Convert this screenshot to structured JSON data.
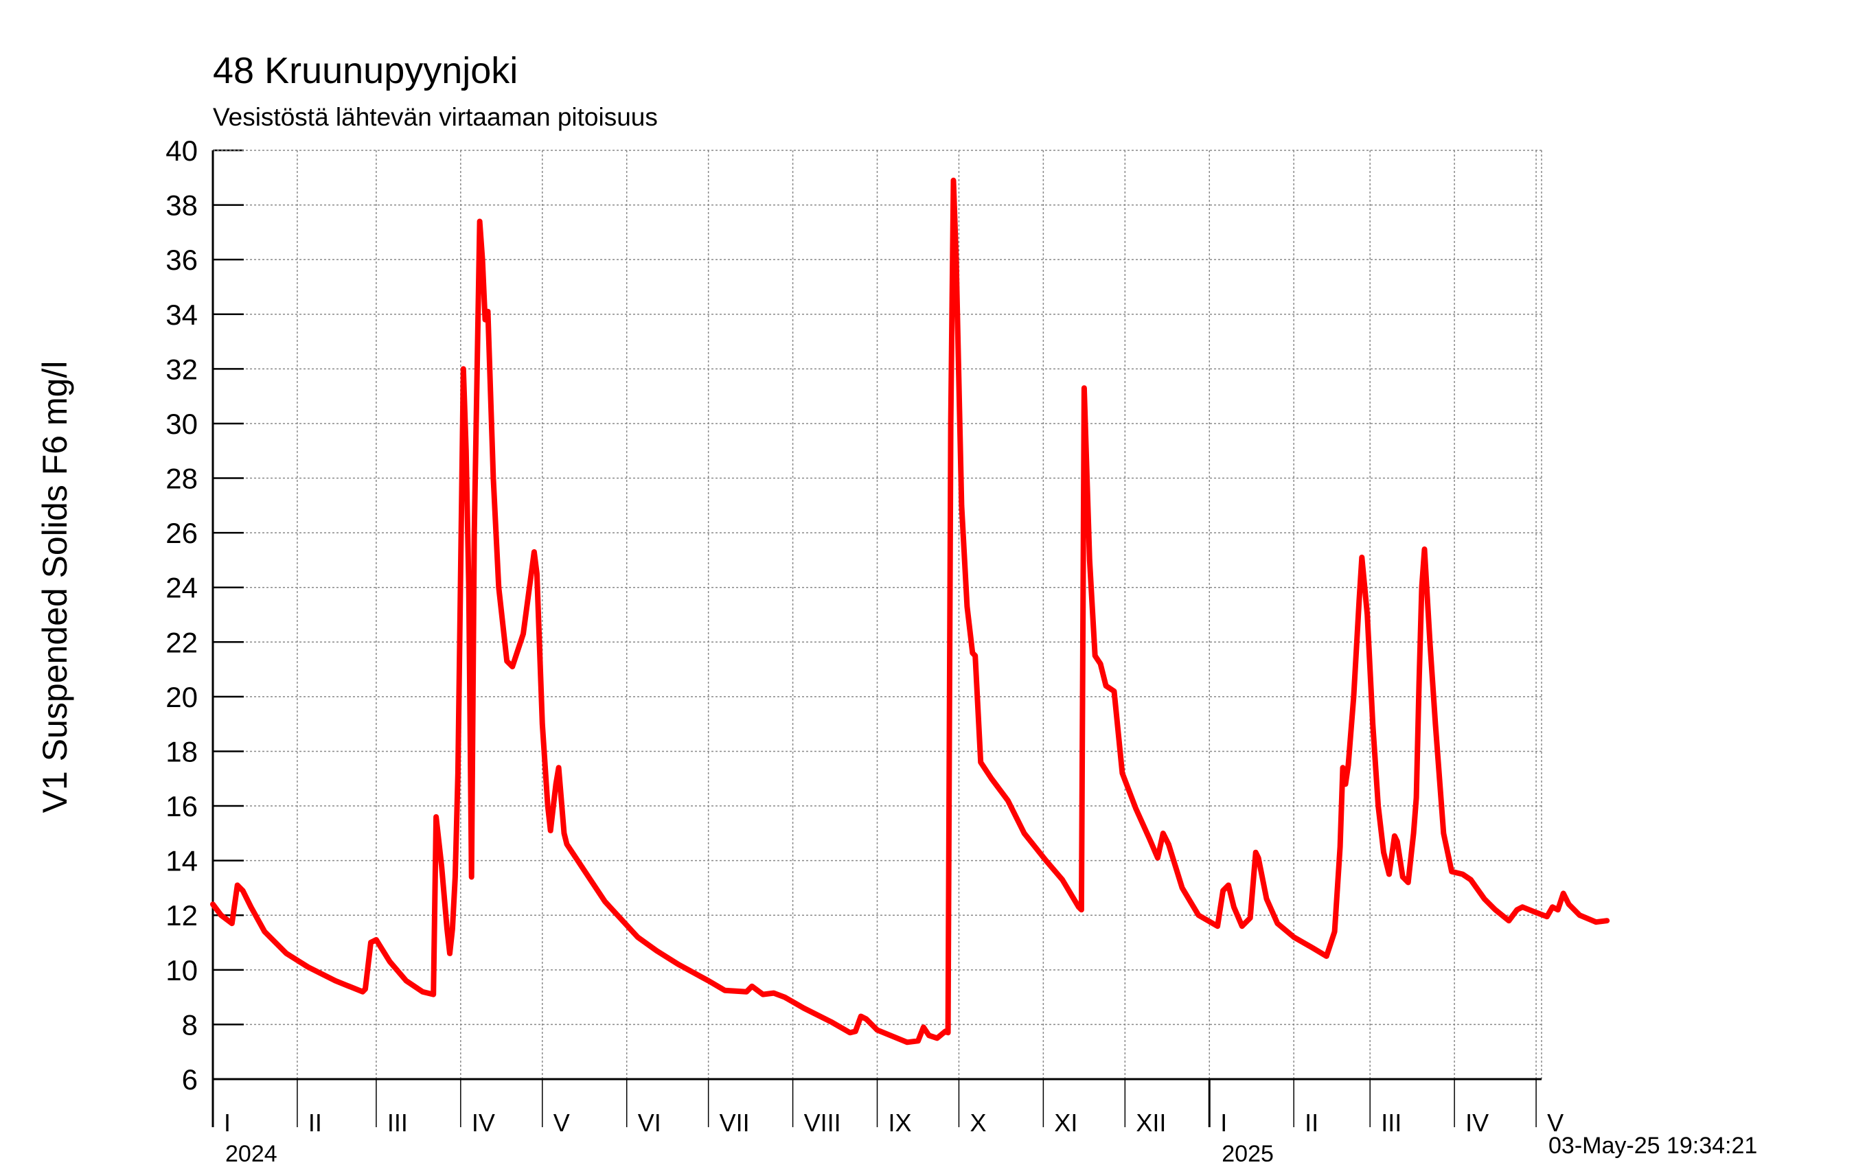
{
  "chart_data": {
    "type": "line",
    "title": "48 Kruunupyynjoki",
    "subtitle": "Vesistöstä lähtevän virtaaman pitoisuus",
    "ylabel": "V1 Suspended Solids F6 mg/l",
    "xlabel": "",
    "ylim": [
      6,
      40
    ],
    "yticks": [
      6,
      8,
      10,
      12,
      14,
      16,
      18,
      20,
      22,
      24,
      26,
      28,
      30,
      32,
      34,
      36,
      38,
      40
    ],
    "xlim": [
      "2024-01-01",
      "2025-05-03"
    ],
    "months": [
      {
        "label": "I",
        "start": "2024-01-01"
      },
      {
        "label": "II",
        "start": "2024-02-01"
      },
      {
        "label": "III",
        "start": "2024-03-01"
      },
      {
        "label": "IV",
        "start": "2024-04-01"
      },
      {
        "label": "V",
        "start": "2024-05-01"
      },
      {
        "label": "VI",
        "start": "2024-06-01"
      },
      {
        "label": "VII",
        "start": "2024-07-01"
      },
      {
        "label": "VIII",
        "start": "2024-08-01"
      },
      {
        "label": "IX",
        "start": "2024-09-01"
      },
      {
        "label": "X",
        "start": "2024-10-01"
      },
      {
        "label": "XI",
        "start": "2024-11-01"
      },
      {
        "label": "XII",
        "start": "2024-12-01"
      },
      {
        "label": "I",
        "start": "2025-01-01"
      },
      {
        "label": "II",
        "start": "2025-02-01"
      },
      {
        "label": "III",
        "start": "2025-03-01"
      },
      {
        "label": "IV",
        "start": "2025-04-01"
      },
      {
        "label": "V",
        "start": "2025-05-01"
      }
    ],
    "years": [
      {
        "label": "2024",
        "start": "2024-01-01"
      },
      {
        "label": "2025",
        "start": "2025-01-01"
      }
    ],
    "grid": true,
    "series": [
      {
        "color": "#ff0000",
        "points": [
          [
            "2024-01-01",
            12.4
          ],
          [
            "2024-01-04",
            12.0
          ],
          [
            "2024-01-08",
            11.7
          ],
          [
            "2024-01-10",
            13.1
          ],
          [
            "2024-01-12",
            12.9
          ],
          [
            "2024-01-15",
            12.3
          ],
          [
            "2024-01-20",
            11.4
          ],
          [
            "2024-01-28",
            10.6
          ],
          [
            "2024-02-05",
            10.1
          ],
          [
            "2024-02-15",
            9.6
          ],
          [
            "2024-02-25",
            9.2
          ],
          [
            "2024-02-26",
            9.3
          ],
          [
            "2024-02-28",
            11.0
          ],
          [
            "2024-03-01",
            11.1
          ],
          [
            "2024-03-06",
            10.3
          ],
          [
            "2024-03-12",
            9.6
          ],
          [
            "2024-03-18",
            9.2
          ],
          [
            "2024-03-22",
            9.1
          ],
          [
            "2024-03-23",
            15.6
          ],
          [
            "2024-03-25",
            13.8
          ],
          [
            "2024-03-27",
            11.5
          ],
          [
            "2024-03-28",
            10.6
          ],
          [
            "2024-03-29",
            11.5
          ],
          [
            "2024-03-30",
            13.4
          ],
          [
            "2024-03-31",
            17.2
          ],
          [
            "2024-04-02",
            32.0
          ],
          [
            "2024-04-03",
            29.0
          ],
          [
            "2024-04-04",
            24.0
          ],
          [
            "2024-04-05",
            13.4
          ],
          [
            "2024-04-06",
            26.0
          ],
          [
            "2024-04-08",
            37.4
          ],
          [
            "2024-04-09",
            36.0
          ],
          [
            "2024-04-10",
            33.8
          ],
          [
            "2024-04-11",
            34.1
          ],
          [
            "2024-04-13",
            28.0
          ],
          [
            "2024-04-15",
            24.0
          ],
          [
            "2024-04-18",
            21.3
          ],
          [
            "2024-04-20",
            21.1
          ],
          [
            "2024-04-24",
            22.3
          ],
          [
            "2024-04-28",
            25.3
          ],
          [
            "2024-04-29",
            24.5
          ],
          [
            "2024-05-01",
            19.0
          ],
          [
            "2024-05-03",
            16.0
          ],
          [
            "2024-05-04",
            15.1
          ],
          [
            "2024-05-06",
            16.8
          ],
          [
            "2024-05-07",
            17.4
          ],
          [
            "2024-05-09",
            15.0
          ],
          [
            "2024-05-10",
            14.6
          ],
          [
            "2024-05-14",
            14.0
          ],
          [
            "2024-05-24",
            12.5
          ],
          [
            "2024-06-05",
            11.2
          ],
          [
            "2024-06-12",
            10.7
          ],
          [
            "2024-06-20",
            10.2
          ],
          [
            "2024-07-01",
            9.6
          ],
          [
            "2024-07-07",
            9.25
          ],
          [
            "2024-07-15",
            9.2
          ],
          [
            "2024-07-17",
            9.4
          ],
          [
            "2024-07-21",
            9.1
          ],
          [
            "2024-07-25",
            9.15
          ],
          [
            "2024-07-29",
            9.0
          ],
          [
            "2024-08-05",
            8.6
          ],
          [
            "2024-08-15",
            8.1
          ],
          [
            "2024-08-22",
            7.7
          ],
          [
            "2024-08-24",
            7.75
          ],
          [
            "2024-08-26",
            8.3
          ],
          [
            "2024-08-28",
            8.2
          ],
          [
            "2024-09-01",
            7.8
          ],
          [
            "2024-09-12",
            7.35
          ],
          [
            "2024-09-16",
            7.4
          ],
          [
            "2024-09-18",
            7.9
          ],
          [
            "2024-09-20",
            7.6
          ],
          [
            "2024-09-23",
            7.5
          ],
          [
            "2024-09-26",
            7.75
          ],
          [
            "2024-09-27",
            7.7
          ],
          [
            "2024-09-28",
            30.0
          ],
          [
            "2024-09-29",
            38.9
          ],
          [
            "2024-09-30",
            36.0
          ],
          [
            "2024-10-02",
            27.0
          ],
          [
            "2024-10-04",
            23.3
          ],
          [
            "2024-10-06",
            21.6
          ],
          [
            "2024-10-07",
            21.5
          ],
          [
            "2024-10-09",
            17.6
          ],
          [
            "2024-10-13",
            17.0
          ],
          [
            "2024-10-19",
            16.2
          ],
          [
            "2024-10-25",
            15.0
          ],
          [
            "2024-11-02",
            14.0
          ],
          [
            "2024-11-08",
            13.3
          ],
          [
            "2024-11-14",
            12.3
          ],
          [
            "2024-11-15",
            12.2
          ],
          [
            "2024-11-16",
            31.3
          ],
          [
            "2024-11-18",
            25.0
          ],
          [
            "2024-11-20",
            21.5
          ],
          [
            "2024-11-22",
            21.2
          ],
          [
            "2024-11-24",
            20.4
          ],
          [
            "2024-11-27",
            20.2
          ],
          [
            "2024-11-30",
            17.2
          ],
          [
            "2024-12-05",
            15.9
          ],
          [
            "2024-12-10",
            14.8
          ],
          [
            "2024-12-13",
            14.1
          ],
          [
            "2024-12-15",
            15.0
          ],
          [
            "2024-12-17",
            14.6
          ],
          [
            "2024-12-22",
            13.0
          ],
          [
            "2024-12-28",
            12.0
          ],
          [
            "2025-01-04",
            11.6
          ],
          [
            "2025-01-06",
            12.9
          ],
          [
            "2025-01-08",
            13.1
          ],
          [
            "2025-01-10",
            12.3
          ],
          [
            "2025-01-13",
            11.6
          ],
          [
            "2025-01-16",
            11.9
          ],
          [
            "2025-01-18",
            14.3
          ],
          [
            "2025-01-19",
            14.1
          ],
          [
            "2025-01-22",
            12.6
          ],
          [
            "2025-01-26",
            11.7
          ],
          [
            "2025-02-01",
            11.2
          ],
          [
            "2025-02-08",
            10.8
          ],
          [
            "2025-02-13",
            10.5
          ],
          [
            "2025-02-16",
            11.4
          ],
          [
            "2025-02-18",
            14.5
          ],
          [
            "2025-02-19",
            17.4
          ],
          [
            "2025-02-20",
            16.8
          ],
          [
            "2025-02-21",
            17.5
          ],
          [
            "2025-02-23",
            20.0
          ],
          [
            "2025-02-25",
            23.5
          ],
          [
            "2025-02-26",
            25.1
          ],
          [
            "2025-02-28",
            23.0
          ],
          [
            "2025-03-02",
            19.0
          ],
          [
            "2025-03-04",
            16.0
          ],
          [
            "2025-03-06",
            14.3
          ],
          [
            "2025-03-08",
            13.5
          ],
          [
            "2025-03-10",
            14.9
          ],
          [
            "2025-03-11",
            14.7
          ],
          [
            "2025-03-13",
            13.4
          ],
          [
            "2025-03-15",
            13.2
          ],
          [
            "2025-03-17",
            15.0
          ],
          [
            "2025-03-18",
            16.3
          ],
          [
            "2025-03-19",
            20.5
          ],
          [
            "2025-03-20",
            24.0
          ],
          [
            "2025-03-21",
            25.4
          ],
          [
            "2025-03-23",
            22.0
          ],
          [
            "2025-03-25",
            19.0
          ],
          [
            "2025-03-28",
            15.0
          ],
          [
            "2025-03-31",
            13.6
          ],
          [
            "2025-04-04",
            13.5
          ],
          [
            "2025-04-07",
            13.3
          ],
          [
            "2025-04-12",
            12.6
          ],
          [
            "2025-04-16",
            12.2
          ],
          [
            "2025-04-21",
            11.8
          ],
          [
            "2025-04-24",
            12.2
          ],
          [
            "2025-04-26",
            12.3
          ],
          [
            "2025-05-01",
            12.1
          ],
          [
            "2025-05-05",
            11.95
          ],
          [
            "2025-05-07",
            12.3
          ],
          [
            "2025-05-09",
            12.2
          ],
          [
            "2025-05-11",
            12.8
          ],
          [
            "2025-05-13",
            12.4
          ],
          [
            "2025-05-17",
            12.0
          ],
          [
            "2025-05-23",
            11.75
          ],
          [
            "2025-05-27",
            11.8
          ]
        ]
      }
    ]
  },
  "footer": {
    "timestamp": "03-May-25 19:34:21"
  }
}
